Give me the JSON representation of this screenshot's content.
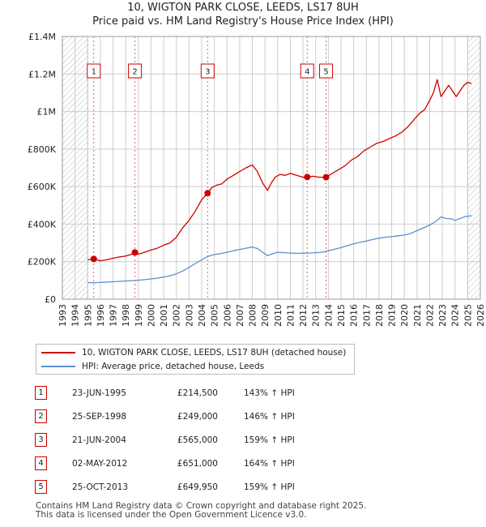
{
  "title_line1": "10, WIGTON PARK CLOSE, LEEDS, LS17 8UH",
  "title_line2": "Price paid vs. HM Land Registry's House Price Index (HPI)",
  "colors": {
    "property": "#cc0000",
    "hpi": "#5b8fd0",
    "grid": "#cccccc",
    "marker": "#cc0000"
  },
  "legend": {
    "property_label": "10, WIGTON PARK CLOSE, LEEDS, LS17 8UH (detached house)",
    "hpi_label": "HPI: Average price, detached house, Leeds"
  },
  "sales": [
    {
      "num": "1",
      "date": "23-JUN-1995",
      "price": "£214,500",
      "hpi": "143% ↑ HPI"
    },
    {
      "num": "2",
      "date": "25-SEP-1998",
      "price": "£249,000",
      "hpi": "146% ↑ HPI"
    },
    {
      "num": "3",
      "date": "21-JUN-2004",
      "price": "£565,000",
      "hpi": "159% ↑ HPI"
    },
    {
      "num": "4",
      "date": "02-MAY-2012",
      "price": "£651,000",
      "hpi": "164% ↑ HPI"
    },
    {
      "num": "5",
      "date": "25-OCT-2013",
      "price": "£649,950",
      "hpi": "159% ↑ HPI"
    }
  ],
  "footer_line1": "Contains HM Land Registry data © Crown copyright and database right 2025.",
  "footer_line2": "This data is licensed under the Open Government Licence v3.0.",
  "chart_data": {
    "type": "line",
    "title": "10, WIGTON PARK CLOSE, LEEDS, LS17 8UH",
    "subtitle": "Price paid vs. HM Land Registry's House Price Index (HPI)",
    "xlabel": "",
    "ylabel": "",
    "xlim": [
      1993,
      2026
    ],
    "ylim": [
      0,
      1400000
    ],
    "x_ticks": [
      1993,
      1994,
      1995,
      1996,
      1997,
      1998,
      1999,
      2000,
      2001,
      2002,
      2003,
      2004,
      2005,
      2006,
      2007,
      2008,
      2009,
      2010,
      2011,
      2012,
      2013,
      2014,
      2015,
      2016,
      2017,
      2018,
      2019,
      2020,
      2021,
      2022,
      2023,
      2024,
      2025,
      2026
    ],
    "y_ticks": [
      0,
      200000,
      400000,
      600000,
      800000,
      1000000,
      1200000,
      1400000
    ],
    "y_tick_labels": [
      "£0",
      "£200K",
      "£400K",
      "£600K",
      "£800K",
      "£1M",
      "£1.2M",
      "£1.4M"
    ],
    "hatch_ranges": [
      [
        1993,
        1995.0
      ],
      [
        2025.0,
        2026
      ]
    ],
    "sale_lines": [
      {
        "label": "1",
        "x": 1995.48
      },
      {
        "label": "2",
        "x": 1998.73
      },
      {
        "label": "3",
        "x": 2004.47
      },
      {
        "label": "4",
        "x": 2012.33
      },
      {
        "label": "5",
        "x": 2013.82
      }
    ],
    "sale_points": [
      {
        "x": 1995.48,
        "y": 214500
      },
      {
        "x": 1998.73,
        "y": 249000
      },
      {
        "x": 2004.47,
        "y": 565000
      },
      {
        "x": 2012.33,
        "y": 651000
      },
      {
        "x": 2013.82,
        "y": 649950
      }
    ],
    "series": [
      {
        "name": "10, WIGTON PARK CLOSE, LEEDS, LS17 8UH (detached house)",
        "x": [
          1995.0,
          1995.48,
          1996.0,
          1996.5,
          1997.0,
          1997.5,
          1998.0,
          1998.5,
          1998.73,
          1999.0,
          1999.5,
          2000.0,
          2000.5,
          2001.0,
          2001.5,
          2002.0,
          2002.5,
          2003.0,
          2003.5,
          2004.0,
          2004.47,
          2004.8,
          2005.2,
          2005.6,
          2006.0,
          2006.5,
          2007.0,
          2007.5,
          2008.0,
          2008.4,
          2008.8,
          2009.2,
          2009.5,
          2009.8,
          2010.2,
          2010.6,
          2011.0,
          2011.5,
          2012.0,
          2012.33,
          2012.8,
          2013.3,
          2013.82,
          2014.3,
          2014.8,
          2015.3,
          2015.8,
          2016.3,
          2016.8,
          2017.3,
          2017.8,
          2018.3,
          2018.8,
          2019.3,
          2019.8,
          2020.3,
          2020.8,
          2021.2,
          2021.6,
          2022.0,
          2022.3,
          2022.6,
          2022.9,
          2023.2,
          2023.5,
          2023.8,
          2024.1,
          2024.4,
          2024.7,
          2025.0,
          2025.3
        ],
        "values": [
          210000,
          214500,
          205000,
          210000,
          218000,
          225000,
          230000,
          240000,
          249000,
          240000,
          250000,
          262000,
          272000,
          288000,
          300000,
          330000,
          380000,
          420000,
          470000,
          530000,
          565000,
          595000,
          608000,
          615000,
          640000,
          660000,
          680000,
          700000,
          715000,
          680000,
          620000,
          580000,
          620000,
          650000,
          665000,
          660000,
          670000,
          660000,
          650000,
          651000,
          655000,
          650000,
          649950,
          670000,
          690000,
          710000,
          740000,
          760000,
          790000,
          810000,
          830000,
          840000,
          855000,
          870000,
          890000,
          920000,
          960000,
          990000,
          1010000,
          1060000,
          1100000,
          1170000,
          1080000,
          1110000,
          1140000,
          1110000,
          1080000,
          1110000,
          1140000,
          1155000,
          1150000
        ]
      },
      {
        "name": "HPI: Average price, detached house, Leeds",
        "x": [
          1995.0,
          1995.5,
          1996.0,
          1996.5,
          1997.0,
          1997.5,
          1998.0,
          1998.5,
          1999.0,
          1999.5,
          2000.0,
          2000.5,
          2001.0,
          2001.5,
          2002.0,
          2002.5,
          2003.0,
          2003.5,
          2004.0,
          2004.5,
          2005.0,
          2005.5,
          2006.0,
          2006.5,
          2007.0,
          2007.5,
          2008.0,
          2008.4,
          2008.8,
          2009.2,
          2009.6,
          2010.0,
          2010.5,
          2011.0,
          2011.5,
          2012.0,
          2012.5,
          2013.0,
          2013.5,
          2014.0,
          2014.5,
          2015.0,
          2015.5,
          2016.0,
          2016.5,
          2017.0,
          2017.5,
          2018.0,
          2018.5,
          2019.0,
          2019.5,
          2020.0,
          2020.5,
          2021.0,
          2021.5,
          2022.0,
          2022.5,
          2022.9,
          2023.3,
          2023.7,
          2024.0,
          2024.4,
          2024.8,
          2025.3
        ],
        "values": [
          88000,
          88000,
          89000,
          91000,
          93000,
          95000,
          97000,
          99000,
          101000,
          104000,
          108000,
          112000,
          118000,
          125000,
          135000,
          150000,
          170000,
          190000,
          210000,
          228000,
          238000,
          243000,
          250000,
          258000,
          265000,
          272000,
          278000,
          270000,
          250000,
          232000,
          242000,
          250000,
          248000,
          246000,
          244000,
          245000,
          246000,
          248000,
          250000,
          258000,
          266000,
          275000,
          285000,
          295000,
          303000,
          310000,
          318000,
          325000,
          330000,
          333000,
          338000,
          342000,
          350000,
          365000,
          380000,
          395000,
          415000,
          438000,
          430000,
          428000,
          420000,
          430000,
          440000,
          445000
        ]
      }
    ]
  }
}
